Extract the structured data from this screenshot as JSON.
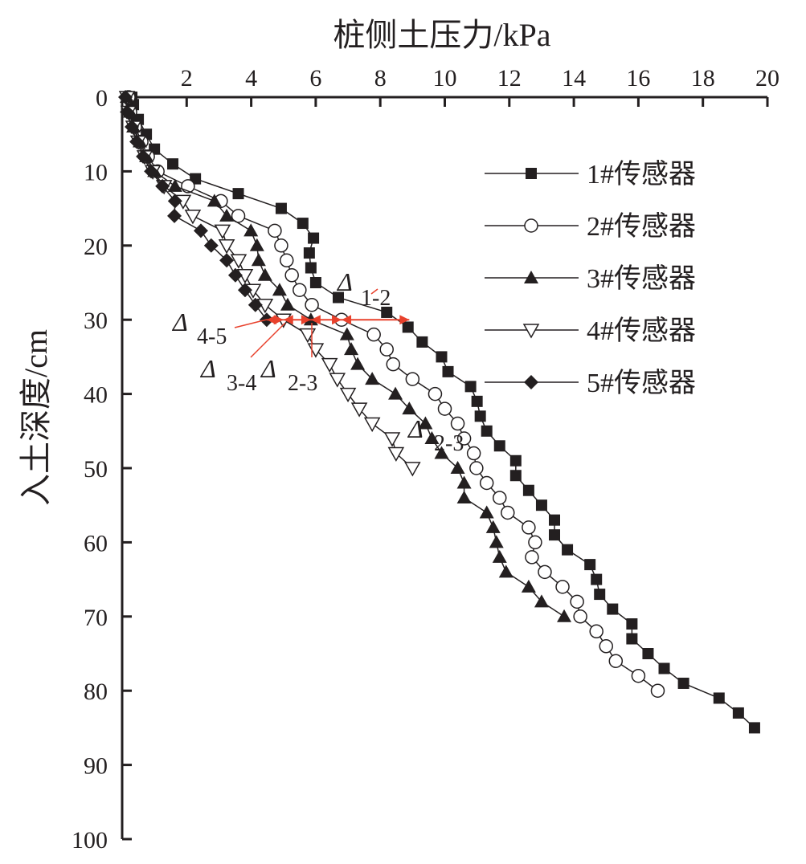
{
  "chart_data": {
    "type": "line",
    "xlabel": "桩侧土压力/kPa",
    "ylabel": "入土深度/cm",
    "xlim": [
      0,
      20
    ],
    "ylim": [
      0,
      100
    ],
    "x_axis_position": "top",
    "y_inverted": true,
    "grid": false,
    "legend_placement": "top-right",
    "x_ticks": [
      2,
      4,
      6,
      8,
      10,
      12,
      14,
      16,
      18,
      20
    ],
    "x_tick_labels": [
      "2",
      "4",
      "6",
      "8",
      "10",
      "12",
      "14",
      "16",
      "18",
      "20"
    ],
    "y_ticks": [
      0,
      10,
      20,
      30,
      40,
      50,
      60,
      70,
      80,
      90,
      100
    ],
    "y_tick_labels": [
      "0",
      "10",
      "20",
      "30",
      "40",
      "50",
      "60",
      "70",
      "80",
      "90",
      "100"
    ],
    "series": [
      {
        "name": "1#传感器",
        "marker": "square-filled",
        "points": [
          [
            0.3,
            0
          ],
          [
            0.35,
            1
          ],
          [
            0.5,
            3
          ],
          [
            0.75,
            5
          ],
          [
            1.0,
            7
          ],
          [
            1.57,
            9
          ],
          [
            2.27,
            11
          ],
          [
            3.6,
            13
          ],
          [
            4.93,
            15
          ],
          [
            5.6,
            17
          ],
          [
            5.93,
            19
          ],
          [
            5.8,
            21
          ],
          [
            5.85,
            23
          ],
          [
            6.0,
            25
          ],
          [
            6.7,
            27
          ],
          [
            8.2,
            29
          ],
          [
            8.86,
            31
          ],
          [
            9.3,
            33
          ],
          [
            9.9,
            35
          ],
          [
            10.1,
            37
          ],
          [
            10.8,
            39
          ],
          [
            11.0,
            41
          ],
          [
            11.1,
            43
          ],
          [
            11.3,
            45
          ],
          [
            11.7,
            47
          ],
          [
            12.2,
            49
          ],
          [
            12.2,
            51
          ],
          [
            12.6,
            53
          ],
          [
            13.0,
            55
          ],
          [
            13.4,
            57
          ],
          [
            13.4,
            59
          ],
          [
            13.8,
            61
          ],
          [
            14.5,
            63
          ],
          [
            14.7,
            65
          ],
          [
            14.8,
            67
          ],
          [
            15.2,
            69
          ],
          [
            15.8,
            71
          ],
          [
            15.8,
            73
          ],
          [
            16.3,
            75
          ],
          [
            16.8,
            77
          ],
          [
            17.4,
            79
          ],
          [
            18.5,
            81
          ],
          [
            19.1,
            83
          ],
          [
            19.6,
            85
          ]
        ]
      },
      {
        "name": "2#传感器",
        "marker": "circle-open",
        "points": [
          [
            0.2,
            0
          ],
          [
            0.25,
            2
          ],
          [
            0.4,
            4
          ],
          [
            0.6,
            6
          ],
          [
            0.8,
            8
          ],
          [
            1.1,
            10
          ],
          [
            2.04,
            12
          ],
          [
            3.06,
            14
          ],
          [
            3.6,
            16
          ],
          [
            4.73,
            18
          ],
          [
            4.93,
            20
          ],
          [
            5.1,
            22
          ],
          [
            5.26,
            24
          ],
          [
            5.5,
            26
          ],
          [
            5.88,
            28
          ],
          [
            6.8,
            30
          ],
          [
            7.8,
            32
          ],
          [
            8.2,
            34
          ],
          [
            8.4,
            36
          ],
          [
            9.0,
            38
          ],
          [
            9.7,
            40
          ],
          [
            10.0,
            42
          ],
          [
            10.4,
            44
          ],
          [
            10.6,
            46
          ],
          [
            10.9,
            48
          ],
          [
            10.98,
            50
          ],
          [
            11.3,
            52
          ],
          [
            11.7,
            54
          ],
          [
            11.95,
            56
          ],
          [
            12.6,
            58
          ],
          [
            12.8,
            60
          ],
          [
            12.7,
            62
          ],
          [
            13.1,
            64
          ],
          [
            13.65,
            66
          ],
          [
            14.1,
            68
          ],
          [
            14.2,
            70
          ],
          [
            14.7,
            72
          ],
          [
            15.0,
            74
          ],
          [
            15.3,
            76
          ],
          [
            16.0,
            78
          ],
          [
            16.6,
            80
          ]
        ]
      },
      {
        "name": "3#传感器",
        "marker": "triangle-up-filled",
        "points": [
          [
            0.15,
            0
          ],
          [
            0.25,
            2
          ],
          [
            0.35,
            4
          ],
          [
            0.55,
            6
          ],
          [
            0.75,
            8
          ],
          [
            1.0,
            10
          ],
          [
            1.64,
            12
          ],
          [
            2.86,
            14
          ],
          [
            3.24,
            16
          ],
          [
            3.99,
            18
          ],
          [
            4.18,
            20
          ],
          [
            4.23,
            22
          ],
          [
            4.43,
            24
          ],
          [
            4.88,
            26
          ],
          [
            5.13,
            28
          ],
          [
            5.85,
            30
          ],
          [
            6.97,
            32
          ],
          [
            7.1,
            34
          ],
          [
            7.3,
            36
          ],
          [
            7.75,
            38
          ],
          [
            8.47,
            40
          ],
          [
            8.9,
            42
          ],
          [
            9.4,
            44
          ],
          [
            9.6,
            46
          ],
          [
            9.9,
            48
          ],
          [
            10.4,
            50
          ],
          [
            10.6,
            52
          ],
          [
            10.6,
            54
          ],
          [
            11.3,
            56
          ],
          [
            11.5,
            58
          ],
          [
            11.6,
            60
          ],
          [
            11.7,
            62
          ],
          [
            11.9,
            64
          ],
          [
            12.6,
            66
          ],
          [
            13.0,
            68
          ],
          [
            13.7,
            70
          ]
        ]
      },
      {
        "name": "4#传感器",
        "marker": "triangle-down-open",
        "points": [
          [
            0.15,
            0
          ],
          [
            0.2,
            2
          ],
          [
            0.35,
            4
          ],
          [
            0.5,
            6
          ],
          [
            0.7,
            8
          ],
          [
            0.95,
            10
          ],
          [
            1.3,
            12
          ],
          [
            1.89,
            14
          ],
          [
            2.19,
            16
          ],
          [
            3.11,
            18
          ],
          [
            3.24,
            20
          ],
          [
            3.61,
            22
          ],
          [
            3.81,
            24
          ],
          [
            4.06,
            26
          ],
          [
            4.43,
            28
          ],
          [
            5.0,
            30
          ],
          [
            5.75,
            32
          ],
          [
            6.0,
            34
          ],
          [
            6.43,
            36
          ],
          [
            6.67,
            38
          ],
          [
            7.0,
            40
          ],
          [
            7.35,
            42
          ],
          [
            7.75,
            44
          ],
          [
            8.37,
            46
          ],
          [
            8.49,
            48
          ],
          [
            9.0,
            50
          ]
        ]
      },
      {
        "name": "5#传感器",
        "marker": "diamond-filled",
        "points": [
          [
            0.1,
            0
          ],
          [
            0.15,
            2
          ],
          [
            0.3,
            4
          ],
          [
            0.45,
            6
          ],
          [
            0.65,
            8
          ],
          [
            0.9,
            10
          ],
          [
            1.25,
            12
          ],
          [
            1.64,
            14
          ],
          [
            1.62,
            16
          ],
          [
            2.44,
            18
          ],
          [
            2.76,
            20
          ],
          [
            3.24,
            22
          ],
          [
            3.51,
            24
          ],
          [
            3.81,
            26
          ],
          [
            4.13,
            28
          ],
          [
            4.48,
            30
          ]
        ]
      }
    ],
    "annotations": [
      {
        "label": "Δ",
        "sub": "1-2",
        "from": [
          6.8,
          30
        ],
        "to": [
          8.9,
          30
        ]
      },
      {
        "label": "Δ",
        "sub": "2-3",
        "from": [
          5.85,
          30
        ],
        "to": [
          6.8,
          30
        ]
      },
      {
        "label": "Δ",
        "sub": "3-4",
        "from": [
          5.0,
          30
        ],
        "to": [
          5.85,
          30
        ]
      },
      {
        "label": "Δ",
        "sub": "4-5",
        "from": [
          4.48,
          30
        ],
        "to": [
          5.0,
          30
        ]
      },
      {
        "label": "Δ",
        "sub": "2-3",
        "at": [
          9.4,
          46
        ]
      }
    ],
    "annotation_color": "#e8412c"
  }
}
